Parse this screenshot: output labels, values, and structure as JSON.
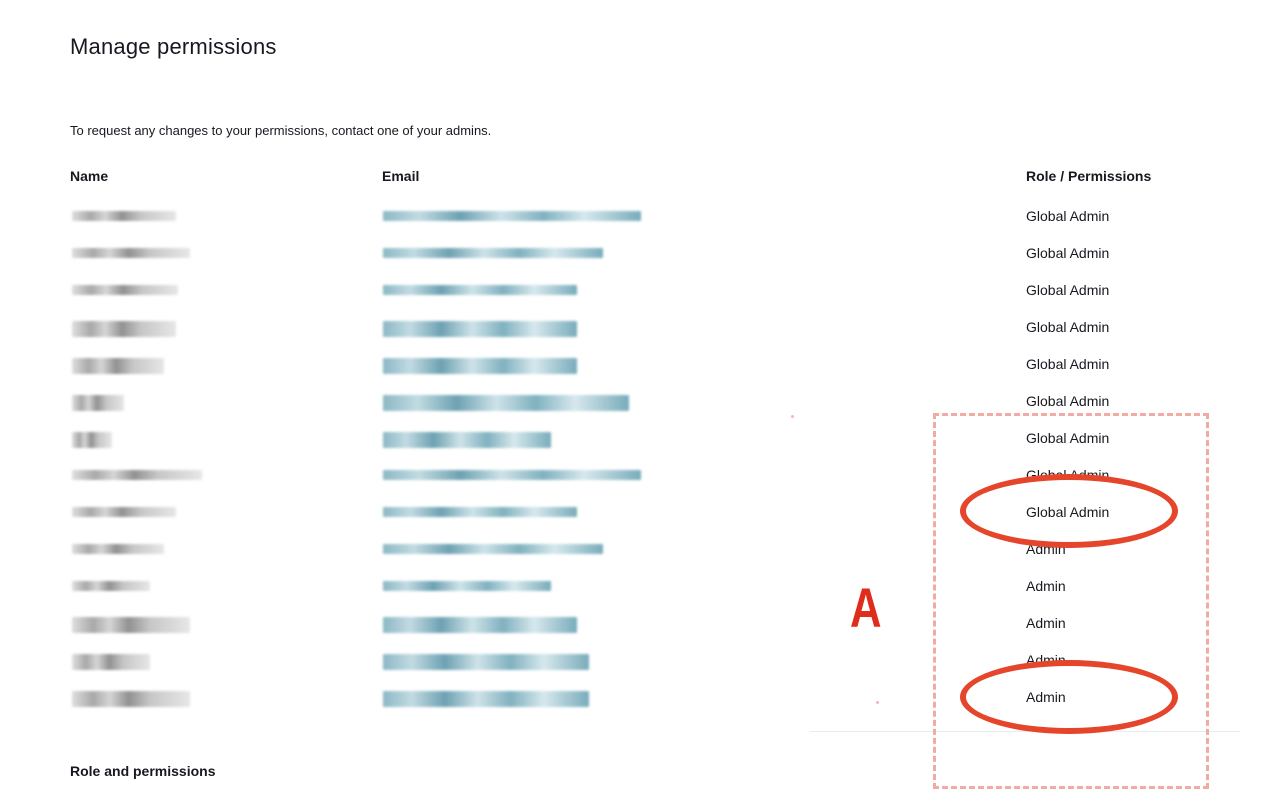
{
  "page": {
    "title": "Manage permissions",
    "subtitle": "To request any changes to your permissions, contact one of your admins.",
    "footer_heading": "Role and permissions"
  },
  "table": {
    "columns": [
      "Name",
      "Email",
      "Role / Permissions"
    ],
    "rows": [
      {
        "role": "Global Admin"
      },
      {
        "role": "Global Admin"
      },
      {
        "role": "Global Admin"
      },
      {
        "role": "Global Admin"
      },
      {
        "role": "Global Admin"
      },
      {
        "role": "Global Admin"
      },
      {
        "role": "Global Admin"
      },
      {
        "role": "Global Admin"
      },
      {
        "role": "Global Admin"
      },
      {
        "role": "Admin"
      },
      {
        "role": "Admin"
      },
      {
        "role": "Admin"
      },
      {
        "role": "Admin"
      },
      {
        "role": "Admin"
      }
    ]
  },
  "annotation": {
    "letter": "A",
    "color": "#e5452a",
    "box_color": "#f2aaa3"
  }
}
